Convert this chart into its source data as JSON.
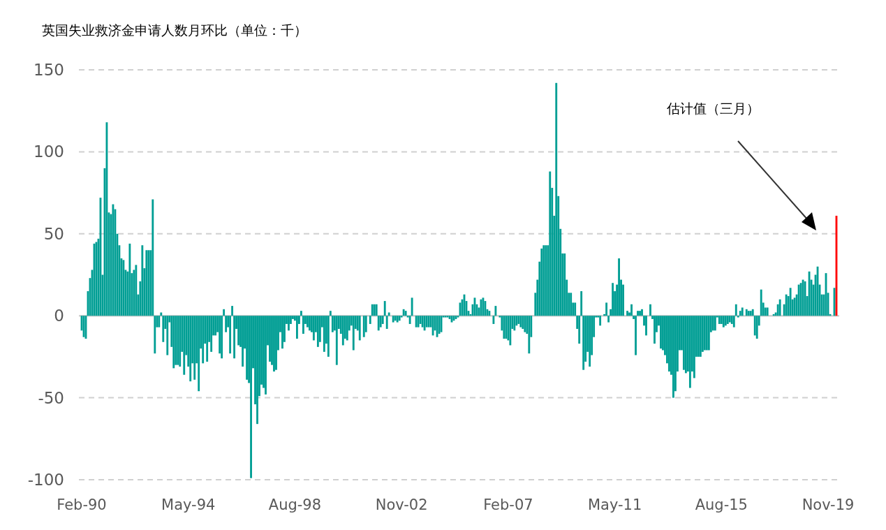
{
  "chart_data": {
    "type": "bar",
    "title": "英国失业救济金申请人数月环比（单位：千）",
    "annotations": [
      "估计值（三月）"
    ],
    "categories": [
      "Feb-90",
      null,
      null,
      null,
      null,
      null,
      null,
      null,
      null,
      null,
      null,
      null,
      null,
      null,
      null,
      null,
      null,
      null,
      null,
      null,
      null,
      null,
      null,
      null,
      null,
      null,
      null,
      null,
      null,
      null,
      null,
      null,
      null,
      null,
      null,
      null,
      null,
      null,
      null,
      null,
      null,
      null,
      null,
      null,
      null,
      null,
      null,
      null,
      null,
      null,
      null,
      "May-94",
      null,
      null,
      null,
      null,
      null,
      null,
      null,
      null,
      null,
      null,
      null,
      null,
      null,
      null,
      null,
      null,
      null,
      null,
      null,
      null,
      null,
      null,
      null,
      null,
      null,
      null,
      null,
      null,
      null,
      null,
      null,
      null,
      null,
      null,
      null,
      null,
      null,
      null,
      null,
      null,
      null,
      null,
      null,
      null,
      null,
      null,
      null,
      null,
      null,
      null,
      "Aug-98",
      null,
      null,
      null,
      null,
      null,
      null,
      null,
      null,
      null,
      null,
      null,
      null,
      null,
      null,
      null,
      null,
      null,
      null,
      null,
      null,
      null,
      null,
      null,
      null,
      null,
      null,
      null,
      null,
      null,
      null,
      null,
      null,
      null,
      null,
      null,
      null,
      null,
      null,
      null,
      null,
      null,
      null,
      null,
      null,
      null,
      null,
      null,
      null,
      null,
      null,
      "Nov-02",
      null,
      null,
      null,
      null,
      null,
      null,
      null,
      null,
      null,
      null,
      null,
      null,
      null,
      null,
      null,
      null,
      null,
      null,
      null,
      null,
      null,
      null,
      null,
      null,
      null,
      null,
      null,
      null,
      null,
      null,
      null,
      null,
      null,
      null,
      null,
      null,
      null,
      null,
      null,
      null,
      null,
      null,
      null,
      null,
      null,
      null,
      null,
      null,
      null,
      null,
      "Feb-07",
      null,
      null,
      null,
      null,
      null,
      null,
      null,
      null,
      null,
      null,
      null,
      null,
      null,
      null,
      null,
      null,
      null,
      null,
      null,
      null,
      null,
      null,
      null,
      null,
      null,
      null,
      null,
      null,
      null,
      null,
      null,
      null,
      null,
      null,
      null,
      null,
      null,
      null,
      null,
      null,
      null,
      null,
      null,
      null,
      null,
      null,
      null,
      null,
      null,
      null,
      "May-11",
      null,
      null,
      null,
      null,
      null,
      null,
      null,
      null,
      null,
      null,
      null,
      null,
      null,
      null,
      null,
      null,
      null,
      null,
      null,
      null,
      null,
      null,
      null,
      null,
      null,
      null,
      null,
      null,
      null,
      null,
      null,
      null,
      null,
      null,
      null,
      null,
      null,
      null,
      null,
      null,
      null,
      null,
      null,
      null,
      null,
      null,
      null,
      null,
      null,
      null,
      "Aug-15",
      null,
      null,
      null,
      null,
      null,
      null,
      null,
      null,
      null,
      null,
      null,
      null,
      null,
      null,
      null,
      null,
      null,
      null,
      null,
      null,
      null,
      null,
      null,
      null,
      null,
      null,
      null,
      null,
      null,
      null,
      null,
      null,
      null,
      null,
      null,
      null,
      null,
      null,
      null,
      null,
      null,
      null,
      null,
      null,
      null,
      null,
      null,
      null,
      null,
      null,
      "Nov-19",
      null,
      null,
      null,
      null
    ],
    "series": [
      {
        "color": "#009e94",
        "values": [
          -9,
          -13,
          -14,
          15,
          23,
          28,
          44,
          45,
          47,
          72,
          25,
          90,
          118,
          63,
          62,
          68,
          65,
          50,
          43,
          35,
          34,
          28,
          27,
          44,
          26,
          28,
          31,
          13,
          21,
          43,
          29,
          40,
          40,
          40,
          71,
          -23,
          -7,
          -7,
          2,
          -16,
          -8,
          -24,
          -4,
          -19,
          -32,
          -30,
          -30,
          -31,
          -22,
          -36,
          -24,
          -31,
          -40,
          -29,
          -39,
          -29,
          -46,
          -20,
          -29,
          -17,
          -28,
          -16,
          -22,
          -12,
          -12,
          -10,
          -23,
          -26,
          4,
          -10,
          -7,
          -23,
          6,
          -26,
          -8,
          -18,
          -19,
          -31,
          -20,
          -39,
          -41,
          -99,
          -32,
          -54,
          -66,
          -49,
          -42,
          -44,
          -48,
          -18,
          -28,
          -30,
          -34,
          -33,
          -21,
          -10,
          -20,
          -16,
          -5,
          -9,
          -5,
          -2,
          -3,
          -14,
          -5,
          3,
          -11,
          -5,
          -7,
          -9,
          -10,
          -15,
          -10,
          -19,
          -16,
          -7,
          -22,
          -17,
          -25,
          3,
          -10,
          -9,
          -30,
          -8,
          -11,
          -18,
          -14,
          -15,
          -9,
          -6,
          -21,
          -8,
          -9,
          -15,
          0,
          -13,
          -10,
          0,
          -5,
          7,
          7,
          7,
          -9,
          -7,
          -5,
          9,
          -8,
          2,
          0,
          -4,
          -3,
          -4,
          -3,
          -1,
          4,
          3,
          -1,
          -5,
          11,
          0,
          -7,
          -7,
          -5,
          -7,
          -9,
          -7,
          -7,
          -7,
          -12,
          -9,
          -13,
          -11,
          -10,
          -1,
          -1,
          -1,
          -2,
          -4,
          -3,
          -2,
          -1,
          8,
          10,
          13,
          9,
          3,
          1,
          7,
          11,
          7,
          5,
          10,
          11,
          9,
          4,
          3,
          0,
          -5,
          6,
          0,
          -1,
          -9,
          -14,
          -14,
          -15,
          -18,
          -8,
          -9,
          -6,
          -5,
          -7,
          -8,
          -10,
          -11,
          -23,
          -13,
          0,
          14,
          22,
          33,
          41,
          43,
          43,
          43,
          88,
          78,
          61,
          142,
          73,
          53,
          38,
          38,
          22,
          14,
          14,
          8,
          8,
          -8,
          -17,
          15,
          -33,
          -28,
          -22,
          -31,
          -24,
          -13,
          -1,
          -1,
          -6,
          0,
          1,
          8,
          -4,
          4,
          20,
          15,
          19,
          35,
          22,
          19,
          0,
          3,
          2,
          7,
          -2,
          -24,
          3,
          3,
          4,
          -6,
          -12,
          0,
          7,
          -2,
          -17,
          -10,
          -6,
          -20,
          -21,
          -24,
          -29,
          -34,
          -36,
          -50,
          -46,
          -34,
          -21,
          -21,
          -33,
          -35,
          -34,
          -44,
          -34,
          -38,
          -25,
          -25,
          -25,
          -22,
          -21,
          -21,
          -21,
          -10,
          -9,
          -9,
          -1,
          -5,
          -5,
          -7,
          -6,
          -5,
          -4,
          -5,
          -7,
          7,
          -1,
          3,
          5,
          0,
          4,
          3,
          3,
          4,
          -12,
          -14,
          -6,
          16,
          8,
          5,
          5,
          0,
          0,
          1,
          2,
          7,
          10,
          0,
          7,
          13,
          12,
          17,
          10,
          11,
          13,
          19,
          20,
          22,
          21,
          12,
          27,
          22,
          19,
          25,
          30,
          19,
          13,
          13,
          26,
          14,
          1,
          0,
          17,
          null
        ]
      },
      {
        "color": "#ff0000",
        "values": [
          null,
          null,
          null,
          null,
          null,
          null,
          null,
          null,
          null,
          null,
          null,
          null,
          null,
          null,
          null,
          null,
          null,
          null,
          null,
          null,
          null,
          null,
          null,
          null,
          null,
          null,
          null,
          null,
          null,
          null,
          null,
          null,
          null,
          null,
          null,
          null,
          null,
          null,
          null,
          null,
          null,
          null,
          null,
          null,
          null,
          null,
          null,
          null,
          null,
          null,
          null,
          null,
          null,
          null,
          null,
          null,
          null,
          null,
          null,
          null,
          null,
          null,
          null,
          null,
          null,
          null,
          null,
          null,
          null,
          null,
          null,
          null,
          null,
          null,
          null,
          null,
          null,
          null,
          null,
          null,
          null,
          null,
          null,
          null,
          null,
          null,
          null,
          null,
          null,
          null,
          null,
          null,
          null,
          null,
          null,
          null,
          null,
          null,
          null,
          null,
          null,
          null,
          null,
          null,
          null,
          null,
          null,
          null,
          null,
          null,
          null,
          null,
          null,
          null,
          null,
          null,
          null,
          null,
          null,
          null,
          null,
          null,
          null,
          null,
          null,
          null,
          null,
          null,
          null,
          null,
          null,
          null,
          null,
          null,
          null,
          null,
          null,
          null,
          null,
          null,
          null,
          null,
          null,
          null,
          null,
          null,
          null,
          null,
          null,
          null,
          null,
          null,
          null,
          null,
          null,
          null,
          null,
          null,
          null,
          null,
          null,
          null,
          null,
          null,
          null,
          null,
          null,
          null,
          null,
          null,
          null,
          null,
          null,
          null,
          null,
          null,
          null,
          null,
          null,
          null,
          null,
          null,
          null,
          null,
          null,
          null,
          null,
          null,
          null,
          null,
          null,
          null,
          null,
          null,
          null,
          null,
          null,
          null,
          null,
          null,
          null,
          null,
          null,
          null,
          null,
          null,
          null,
          null,
          null,
          null,
          null,
          null,
          null,
          null,
          null,
          null,
          null,
          null,
          null,
          null,
          null,
          null,
          null,
          null,
          null,
          null,
          null,
          null,
          null,
          null,
          null,
          null,
          null,
          null,
          null,
          null,
          null,
          null,
          null,
          null,
          null,
          null,
          null,
          null,
          null,
          null,
          null,
          null,
          null,
          null,
          null,
          null,
          null,
          null,
          null,
          null,
          null,
          null,
          null,
          null,
          null,
          null,
          null,
          null,
          null,
          null,
          null,
          null,
          null,
          null,
          null,
          null,
          null,
          null,
          null,
          null,
          null,
          null,
          null,
          null,
          null,
          null,
          null,
          null,
          null,
          null,
          null,
          null,
          null,
          null,
          null,
          null,
          null,
          null,
          null,
          null,
          null,
          null,
          null,
          null,
          null,
          null,
          null,
          null,
          null,
          null,
          null,
          null,
          null,
          null,
          null,
          null,
          null,
          null,
          null,
          null,
          null,
          null,
          null,
          null,
          null,
          null,
          null,
          null,
          null,
          null,
          null,
          null,
          null,
          null,
          null,
          null,
          null,
          null,
          null,
          null,
          null,
          null,
          null,
          null,
          null,
          null,
          null,
          null,
          null,
          null,
          null,
          null,
          null,
          null,
          null,
          null,
          null,
          null,
          null,
          null,
          null,
          null,
          null,
          null,
          null,
          61
        ]
      }
    ],
    "stacked": true,
    "ylim": [
      -100,
      150
    ],
    "yticks": [
      -100,
      -50,
      0,
      50,
      100,
      150
    ],
    "grid": "y"
  }
}
